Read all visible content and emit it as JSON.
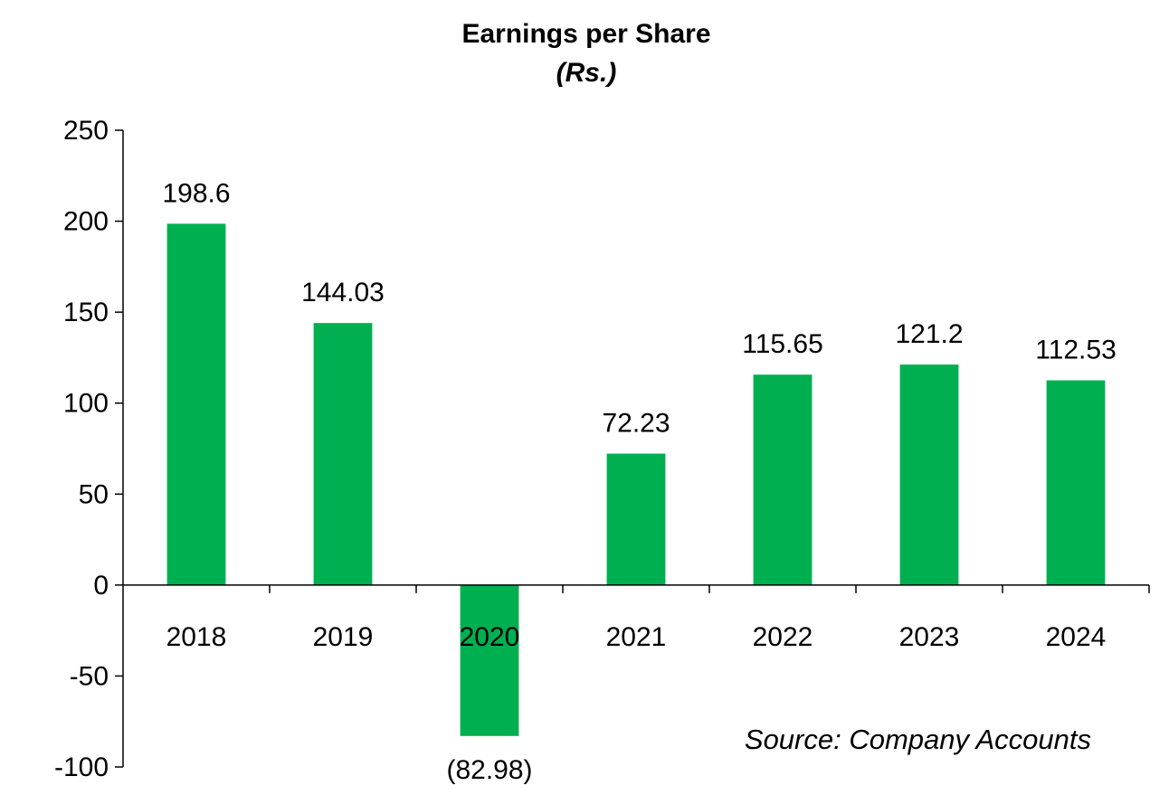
{
  "chart_data": {
    "type": "bar",
    "title": "Earnings per Share",
    "subtitle": "(Rs.)",
    "categories": [
      "2018",
      "2019",
      "2020",
      "2021",
      "2022",
      "2023",
      "2024"
    ],
    "values": [
      198.6,
      144.03,
      -82.98,
      72.23,
      115.65,
      121.2,
      112.53
    ],
    "data_labels": [
      "198.6",
      "144.03",
      "(82.98)",
      "72.23",
      "115.65",
      "121.2",
      "112.53"
    ],
    "yticks": [
      "250",
      "200",
      "150",
      "100",
      "50",
      "0",
      "-50",
      "-100"
    ],
    "ylim": [
      -100,
      250
    ],
    "bar_color": "#00b050",
    "grid": false,
    "legend": "none",
    "source_note": "Source: Company Accounts"
  }
}
